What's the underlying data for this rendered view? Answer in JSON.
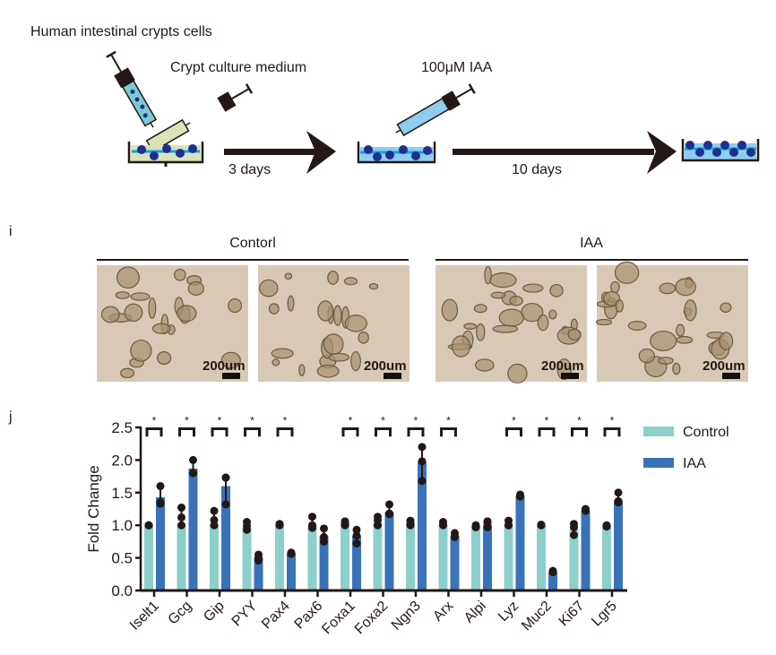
{
  "schematic": {
    "cells_label": "Human intestinal crypts cells",
    "medium_label": "Crypt culture medium",
    "treatment_label": "100μM IAA",
    "step1_duration": "3 days",
    "step2_duration": "10 days"
  },
  "panel_i": {
    "letter": "i",
    "groups": [
      {
        "label": "Contorl",
        "scale_bars": [
          "200um",
          "200um"
        ]
      },
      {
        "label": "IAA",
        "scale_bars": [
          "200um",
          "200um"
        ]
      }
    ]
  },
  "panel_j": {
    "letter": "j"
  },
  "chart_data": {
    "type": "bar",
    "ylabel": "Fold Change",
    "ylim": [
      0,
      2.5
    ],
    "yticks": [
      "0.0",
      "0.5",
      "1.0",
      "1.5",
      "2.0",
      "2.5"
    ],
    "legend_position": "right",
    "categories": [
      "Iselt1",
      "Gcg",
      "Gip",
      "PYY",
      "Pax4",
      "Pax6",
      "Foxa1",
      "Foxa2",
      "Ngn3",
      "Arx",
      "Alpi",
      "Lyz",
      "Muc2",
      "Ki67",
      "Lgr5"
    ],
    "significance": [
      true,
      true,
      true,
      true,
      true,
      false,
      true,
      true,
      true,
      true,
      false,
      true,
      true,
      true,
      true
    ],
    "significance_mark": "*",
    "series": [
      {
        "name": "Control",
        "color": "#8ccfcb",
        "values": [
          1.0,
          1.0,
          1.0,
          0.97,
          1.0,
          1.0,
          1.02,
          1.05,
          1.02,
          1.0,
          0.98,
          1.0,
          1.0,
          0.94,
          1.0
        ],
        "points": [
          [
            1.0,
            1.0,
            1.0
          ],
          [
            1.27,
            1.12,
            1.0
          ],
          [
            1.22,
            1.08,
            1.0
          ],
          [
            1.05,
            0.99,
            0.93
          ],
          [
            1.02,
            1.01,
            1.0
          ],
          [
            1.13,
            1.0,
            0.96
          ],
          [
            1.06,
            1.03,
            1.0
          ],
          [
            1.13,
            1.08,
            1.0
          ],
          [
            1.07,
            1.03,
            1.0
          ],
          [
            1.05,
            1.01,
            1.0
          ],
          [
            1.0,
            0.98,
            0.97
          ],
          [
            1.07,
            1.0,
            1.0
          ],
          [
            1.01,
            1.0,
            1.0
          ],
          [
            1.02,
            0.97,
            0.85
          ],
          [
            1.0,
            0.99,
            0.98
          ]
        ]
      },
      {
        "name": "IAA",
        "color": "#3a72b8",
        "values": [
          1.43,
          1.87,
          1.6,
          0.5,
          0.57,
          0.83,
          0.84,
          1.2,
          1.97,
          0.83,
          1.0,
          1.45,
          0.28,
          1.22,
          1.38
        ],
        "points": [
          [
            1.6,
            1.35,
            1.33
          ],
          [
            2.0,
            1.8,
            1.8
          ],
          [
            1.73,
            1.73,
            1.32
          ],
          [
            0.55,
            0.5,
            0.46
          ],
          [
            0.58,
            0.57,
            0.56
          ],
          [
            0.95,
            0.82,
            0.75
          ],
          [
            0.93,
            0.84,
            0.72
          ],
          [
            1.32,
            1.18,
            1.17
          ],
          [
            2.2,
            1.98,
            1.68
          ],
          [
            0.88,
            0.83,
            0.82
          ],
          [
            1.06,
            1.03,
            0.97
          ],
          [
            1.47,
            1.45,
            1.44
          ],
          [
            0.3,
            0.29,
            0.28
          ],
          [
            1.25,
            1.23,
            1.22
          ],
          [
            1.5,
            1.37,
            1.35
          ]
        ]
      }
    ]
  }
}
